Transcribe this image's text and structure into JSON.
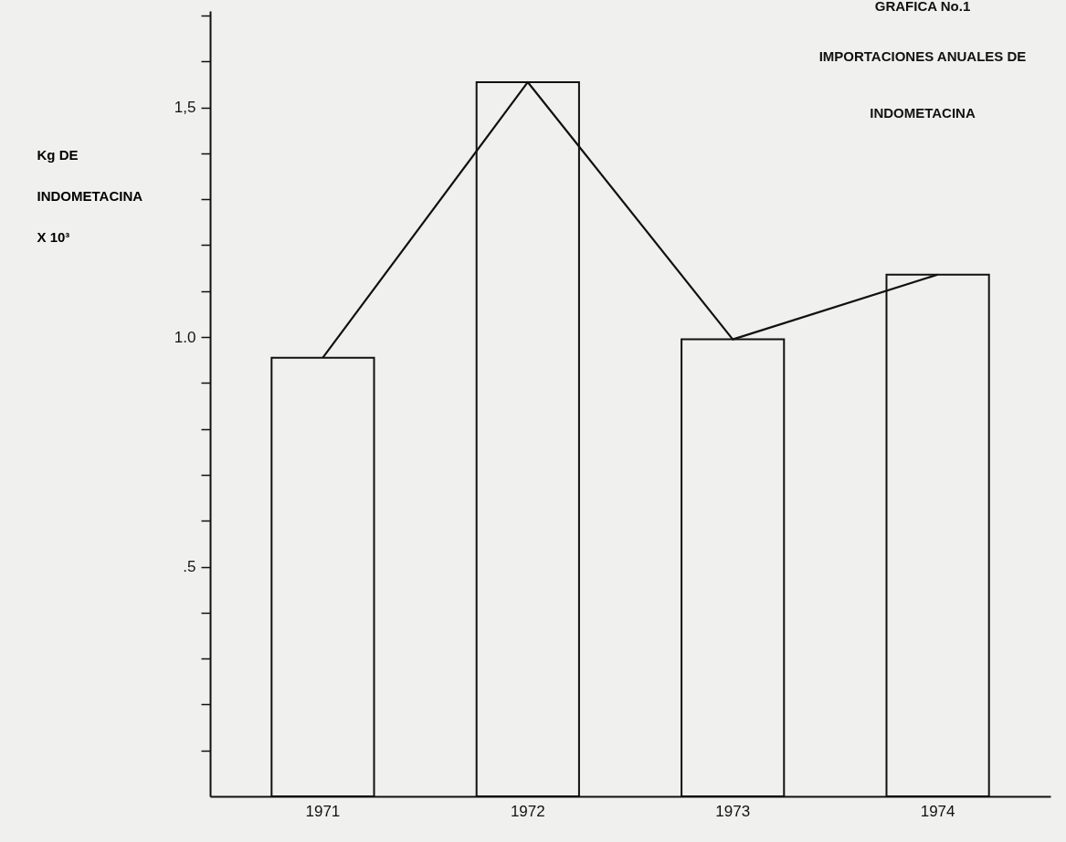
{
  "chart_data": {
    "type": "bar",
    "title": "GRAFICA   No.1",
    "subtitle": "IMPORTACIONES   ANUALES   DE\nINDOMETACINA",
    "ylabel": "Kg  DE\nINDOMETACINA\nX 10³",
    "categories": [
      "1971",
      "1972",
      "1973",
      "1974"
    ],
    "series": [
      {
        "color": "#111111",
        "values": [
          0.955,
          1.555,
          0.995,
          1.136
        ]
      },
      {
        "type": "line",
        "color": "#111111",
        "values": [
          0.955,
          1.555,
          0.995,
          1.136
        ]
      }
    ],
    "ylim": [
      0,
      1.71
    ],
    "yticks": [
      {
        "value": 0.1,
        "label": null
      },
      {
        "value": 0.2,
        "label": null
      },
      {
        "value": 0.3,
        "label": null
      },
      {
        "value": 0.4,
        "label": null
      },
      {
        "value": 0.5,
        "label": ".5"
      },
      {
        "value": 0.6,
        "label": null
      },
      {
        "value": 0.7,
        "label": null
      },
      {
        "value": 0.8,
        "label": null
      },
      {
        "value": 0.9,
        "label": null
      },
      {
        "value": 1.0,
        "label": "1.0"
      },
      {
        "value": 1.1,
        "label": null
      },
      {
        "value": 1.2,
        "label": null
      },
      {
        "value": 1.3,
        "label": null
      },
      {
        "value": 1.4,
        "label": null
      },
      {
        "value": 1.5,
        "label": "1,5"
      },
      {
        "value": 1.6,
        "label": null
      },
      {
        "value": 1.7,
        "label": null
      }
    ],
    "grid": false,
    "marker": "none",
    "line_style": "solid"
  }
}
